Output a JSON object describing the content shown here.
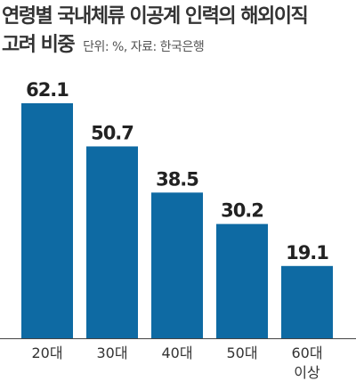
{
  "title_line1": "연령별 국내체류 이공계 인력의 해외이직",
  "title_line2": "고려 비중",
  "unit_note": "단위: %, 자료: 한국은행",
  "colors": {
    "bar": "#0e6aa3",
    "value_text": "#222222",
    "axis": "#444444",
    "tick_text": "#333333"
  },
  "chart_data": {
    "type": "bar",
    "categories": [
      "20대",
      "30대",
      "40대",
      "50대",
      "60대\n이상"
    ],
    "values": [
      62.1,
      50.7,
      38.5,
      30.2,
      19.1
    ],
    "value_labels": [
      "62.1",
      "50.7",
      "38.5",
      "30.2",
      "19.1"
    ],
    "ylim": [
      0,
      62.1
    ]
  }
}
